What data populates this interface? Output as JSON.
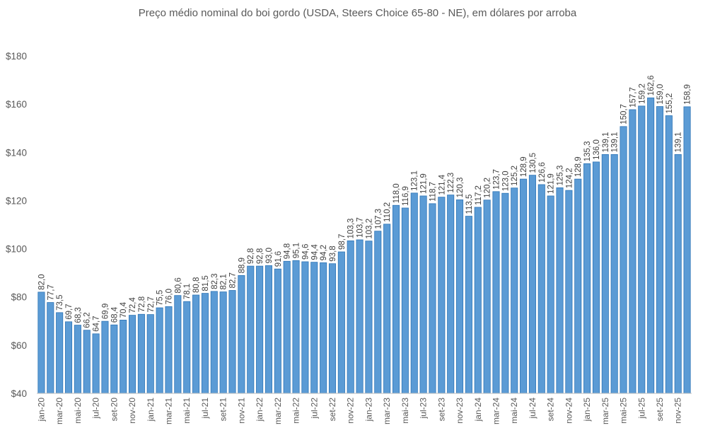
{
  "chart_data": {
    "type": "bar",
    "title": "Preço médio nominal do boi gordo (USDA, Steers Choice 65-80 - NE), em dólares por arroba",
    "xlabel": "",
    "ylabel": "",
    "ylim": [
      40,
      180
    ],
    "y_ticks": [
      "$40",
      "$60",
      "$80",
      "$100",
      "$120",
      "$140",
      "$160",
      "$180"
    ],
    "grid": false,
    "legend": "none",
    "bar_color": "#5b9bd5",
    "bar_edge_color": "#2e75b6",
    "categories": [
      "jan-20",
      "fev-20",
      "mar-20",
      "abr-20",
      "mai-20",
      "jun-20",
      "jul-20",
      "ago-20",
      "set-20",
      "out-20",
      "nov-20",
      "dez-20",
      "jan-21",
      "fev-21",
      "mar-21",
      "abr-21",
      "mai-21",
      "jun-21",
      "jul-21",
      "ago-21",
      "set-21",
      "out-21",
      "nov-21",
      "dez-21",
      "jan-22",
      "fev-22",
      "mar-22",
      "abr-22",
      "mai-22",
      "jun-22",
      "jul-22",
      "ago-22",
      "set-22",
      "out-22",
      "nov-22",
      "dez-22",
      "jan-23",
      "fev-23",
      "mar-23",
      "abr-23",
      "mai-23",
      "jun-23",
      "jul-23",
      "ago-23",
      "set-23",
      "out-23",
      "nov-23",
      "dez-23",
      "jan-24",
      "fev-24",
      "mar-24",
      "abr-24",
      "mai-24",
      "jun-24",
      "jul-24",
      "ago-24",
      "set-24",
      "out-24",
      "nov-24",
      "dez-24",
      "jan-25",
      "fev-25",
      "mar-25",
      "abr-25",
      "mai-25",
      "jun-25",
      "jul-25",
      "ago-25",
      "set-25",
      "out-25",
      "nov-25",
      "dez-25"
    ],
    "tick_labels_shown": [
      "jan-20",
      "mar-20",
      "mai-20",
      "jul-20",
      "set-20",
      "nov-20",
      "jan-21",
      "mar-21",
      "mai-21",
      "jul-21",
      "set-21",
      "nov-21",
      "jan-22",
      "mar-22",
      "mai-22",
      "jul-22",
      "set-22",
      "nov-22",
      "jan-23",
      "mar-23",
      "mai-23",
      "jul-23",
      "set-23",
      "nov-23",
      "jan-24",
      "mar-24",
      "mai-24",
      "jul-24",
      "set-24",
      "nov-24",
      "jan-25",
      "mar-25",
      "mai-25",
      "jul-25",
      "set-25",
      "nov-25"
    ],
    "values": [
      82.0,
      77.7,
      73.5,
      69.7,
      68.3,
      66.2,
      64.7,
      69.9,
      68.4,
      70.4,
      72.4,
      72.8,
      72.7,
      75.5,
      76.0,
      80.6,
      78.1,
      80.8,
      81.5,
      82.3,
      82.1,
      82.7,
      88.9,
      92.8,
      92.8,
      93.0,
      91.6,
      94.8,
      95.1,
      94.6,
      94.4,
      94.2,
      93.8,
      98.7,
      103.3,
      103.7,
      103.2,
      107.3,
      110.2,
      118.0,
      116.9,
      123.1,
      121.9,
      118.7,
      121.4,
      122.3,
      120.3,
      113.5,
      117.2,
      120.2,
      123.7,
      123.0,
      125.2,
      128.9,
      130.5,
      126.6,
      121.9,
      125.3,
      124.2,
      128.9,
      135.3,
      136.0,
      139.1,
      139.1,
      150.7,
      157.7,
      159.2,
      162.6,
      159.0,
      155.2,
      139.1,
      158.9
    ],
    "data_labels": [
      "82,0",
      "77,7",
      "73,5",
      "69,7",
      "68,3",
      "66,2",
      "64,7",
      "69,9",
      "68,4",
      "70,4",
      "72,4",
      "72,8",
      "72,7",
      "75,5",
      "76,0",
      "80,6",
      "78,1",
      "80,8",
      "81,5",
      "82,3",
      "82,1",
      "82,7",
      "88,9",
      "92,8",
      "92,8",
      "93,0",
      "91,6",
      "94,8",
      "95,1",
      "94,6",
      "94,4",
      "94,2",
      "93,8",
      "98,7",
      "103,3",
      "103,7",
      "103,2",
      "107,3",
      "110,2",
      "118,0",
      "116,9",
      "123,1",
      "121,9",
      "118,7",
      "121,4",
      "122,3",
      "120,3",
      "113,5",
      "117,2",
      "120,2",
      "123,7",
      "123,0",
      "125,2",
      "128,9",
      "130,5",
      "126,6",
      "121,9",
      "125,3",
      "124,2",
      "128,9",
      "135,3",
      "136,0",
      "139,1",
      "139,1",
      "150,7",
      "157,7",
      "159,2",
      "162,6",
      "159,0",
      "155,2",
      "139,1",
      "158,9"
    ]
  }
}
